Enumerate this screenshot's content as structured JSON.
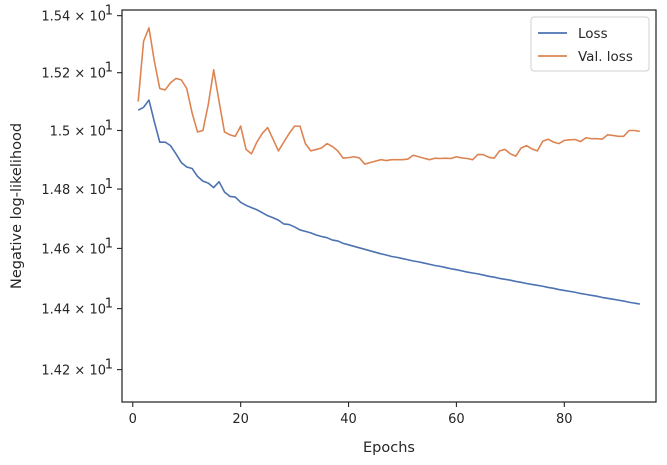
{
  "chart_data": {
    "type": "line",
    "title": "",
    "xlabel": "Epochs",
    "ylabel": "Negative log-likelihood",
    "xlim": [
      -2,
      97
    ],
    "ylim": [
      14.095,
      15.42
    ],
    "yscale": "log",
    "grid": false,
    "legend_position": "top-right",
    "x_ticks": [
      0,
      20,
      40,
      60,
      80
    ],
    "x_tick_labels": [
      "0",
      "20",
      "40",
      "60",
      "80"
    ],
    "y_ticks": [
      {
        "value": 14.2,
        "mantissa": "1.42"
      },
      {
        "value": 14.4,
        "mantissa": "1.44"
      },
      {
        "value": 14.6,
        "mantissa": "1.46"
      },
      {
        "value": 14.8,
        "mantissa": "1.48"
      },
      {
        "value": 15.0,
        "mantissa": "1.5"
      },
      {
        "value": 15.2,
        "mantissa": "1.52"
      },
      {
        "value": 15.4,
        "mantissa": "1.54"
      }
    ],
    "y_tick_base": "× 10",
    "y_tick_exponent": "1",
    "x": [
      1,
      2,
      3,
      4,
      5,
      6,
      7,
      8,
      9,
      10,
      11,
      12,
      13,
      14,
      15,
      16,
      17,
      18,
      19,
      20,
      21,
      22,
      23,
      24,
      25,
      26,
      27,
      28,
      29,
      30,
      31,
      32,
      33,
      34,
      35,
      36,
      37,
      38,
      39,
      40,
      41,
      42,
      43,
      44,
      45,
      46,
      47,
      48,
      49,
      50,
      51,
      52,
      53,
      54,
      55,
      56,
      57,
      58,
      59,
      60,
      61,
      62,
      63,
      64,
      65,
      66,
      67,
      68,
      69,
      70,
      71,
      72,
      73,
      74,
      75,
      76,
      77,
      78,
      79,
      80,
      81,
      82,
      83,
      84,
      85,
      86,
      87,
      88,
      89,
      90,
      91,
      92,
      93,
      94
    ],
    "series": [
      {
        "name": "Loss",
        "color": "#4c72b0",
        "values": [
          15.07,
          15.08,
          15.105,
          15.03,
          14.96,
          14.96,
          14.948,
          14.92,
          14.89,
          14.875,
          14.87,
          14.843,
          14.827,
          14.82,
          14.805,
          14.825,
          14.79,
          14.775,
          14.773,
          14.755,
          14.745,
          14.737,
          14.73,
          14.72,
          14.71,
          14.703,
          14.695,
          14.682,
          14.68,
          14.672,
          14.662,
          14.657,
          14.652,
          14.645,
          14.64,
          14.636,
          14.628,
          14.625,
          14.617,
          14.612,
          14.607,
          14.602,
          14.597,
          14.592,
          14.587,
          14.582,
          14.578,
          14.573,
          14.57,
          14.566,
          14.562,
          14.558,
          14.555,
          14.551,
          14.547,
          14.543,
          14.54,
          14.536,
          14.532,
          14.529,
          14.525,
          14.521,
          14.518,
          14.515,
          14.511,
          14.507,
          14.504,
          14.5,
          14.497,
          14.494,
          14.49,
          14.487,
          14.483,
          14.48,
          14.477,
          14.474,
          14.47,
          14.467,
          14.463,
          14.46,
          14.457,
          14.454,
          14.45,
          14.447,
          14.444,
          14.441,
          14.437,
          14.434,
          14.431,
          14.428,
          14.425,
          14.421,
          14.418,
          14.415
        ]
      },
      {
        "name": "Val. loss",
        "color": "#dd8452",
        "values": [
          15.1,
          15.31,
          15.357,
          15.24,
          15.145,
          15.14,
          15.165,
          15.18,
          15.175,
          15.145,
          15.06,
          14.995,
          15.0,
          15.09,
          15.21,
          15.1,
          14.995,
          14.985,
          14.98,
          15.015,
          14.935,
          14.92,
          14.96,
          14.99,
          15.01,
          14.97,
          14.93,
          14.96,
          14.99,
          15.015,
          15.015,
          14.955,
          14.93,
          14.935,
          14.94,
          14.955,
          14.945,
          14.93,
          14.905,
          14.907,
          14.91,
          14.906,
          14.885,
          14.89,
          14.895,
          14.9,
          14.897,
          14.9,
          14.9,
          14.9,
          14.902,
          14.915,
          14.91,
          14.905,
          14.9,
          14.905,
          14.904,
          14.905,
          14.904,
          14.91,
          14.906,
          14.904,
          14.9,
          14.918,
          14.917,
          14.908,
          14.905,
          14.93,
          14.935,
          14.92,
          14.912,
          14.94,
          14.948,
          14.937,
          14.93,
          14.963,
          14.97,
          14.96,
          14.955,
          14.966,
          14.968,
          14.969,
          14.962,
          14.975,
          14.972,
          14.972,
          14.97,
          14.985,
          14.983,
          14.98,
          14.98,
          15.0,
          15.0,
          14.997
        ]
      }
    ]
  }
}
